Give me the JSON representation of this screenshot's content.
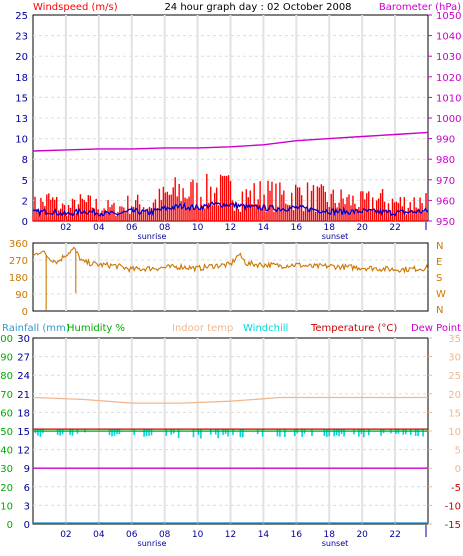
{
  "colors": {
    "windspeed": "#ff0000",
    "windavg": "#0000cc",
    "barometer": "#cc00cc",
    "winddir": "#cc7700",
    "rainfall": "#3399cc",
    "humidity": "#00aa00",
    "indoor": "#f0b890",
    "windchill": "#00d8d8",
    "temperature": "#cc0000",
    "dewpoint": "#cc00cc",
    "grid": "#dcdcdc",
    "axisblue": "#000099"
  },
  "chart_data": [
    {
      "type": "line",
      "title": "24 hour graph day : 02 October 2008",
      "left_label": "Windspeed (m/s)",
      "right_label": "Barometer (hPa)",
      "left_ticks": [
        "0",
        "2",
        "5",
        "8",
        "10",
        "13",
        "15",
        "18",
        "20",
        "23",
        "25"
      ],
      "right_ticks": [
        "950",
        "960",
        "970",
        "980",
        "990",
        "1000",
        "1010",
        "1020",
        "1030",
        "1040",
        "1050"
      ],
      "ylim": [
        0,
        25
      ],
      "ylim_right": [
        950,
        1050
      ],
      "x_ticks": [
        "02",
        "04",
        "06",
        "08",
        "10",
        "12",
        "14",
        "16",
        "18",
        "20",
        "22"
      ],
      "sunrise_label": "sunrise",
      "sunset_label": "sunset",
      "series": [
        {
          "name": "Barometer (hPa)",
          "axis": "right",
          "x": [
            0,
            2,
            4,
            6,
            8,
            10,
            12,
            14,
            16,
            18,
            20,
            22,
            24
          ],
          "values": [
            984,
            984.5,
            985,
            985,
            985.5,
            985.5,
            986,
            987,
            989,
            990,
            991,
            992,
            993
          ]
        },
        {
          "name": "Windspeed (m/s)",
          "axis": "left",
          "type": "bar",
          "x": [
            0,
            1,
            2,
            3,
            4,
            5,
            6,
            7,
            8,
            9,
            10,
            11,
            12,
            13,
            14,
            15,
            16,
            17,
            18,
            19,
            20,
            21,
            22,
            23,
            24
          ],
          "values": [
            2.5,
            3.5,
            2,
            3,
            2.5,
            2,
            3,
            2.5,
            4,
            5,
            4.5,
            5,
            5,
            4,
            4.5,
            4,
            4.5,
            4,
            3.5,
            3.5,
            3,
            3.5,
            3,
            3,
            3.5
          ]
        },
        {
          "name": "Wind average",
          "axis": "left",
          "x": [
            0,
            1,
            2,
            3,
            4,
            5,
            6,
            7,
            8,
            9,
            10,
            11,
            12,
            13,
            14,
            15,
            16,
            17,
            18,
            19,
            20,
            21,
            22,
            23,
            24
          ],
          "values": [
            1,
            1.2,
            0.8,
            1.2,
            1,
            0.8,
            1.2,
            1,
            1.5,
            1.8,
            1.6,
            2,
            2,
            1.7,
            1.6,
            1.5,
            1.6,
            1.4,
            1.2,
            1.1,
            1.2,
            1.1,
            1,
            1.1,
            1.2
          ]
        }
      ]
    },
    {
      "type": "line",
      "left_ticks": [
        "0",
        "90",
        "180",
        "270",
        "360"
      ],
      "right_ticks": [
        "N",
        "W",
        "S",
        "E",
        "N"
      ],
      "ylim": [
        0,
        360
      ],
      "series": [
        {
          "name": "Wind direction",
          "x": [
            0,
            0.5,
            1,
            1.5,
            2,
            2.5,
            3,
            4,
            5,
            6,
            7,
            8,
            9,
            10,
            11,
            12,
            12.5,
            13,
            14,
            15,
            16,
            17,
            18,
            19,
            20,
            21,
            22,
            23,
            24
          ],
          "values": [
            290,
            320,
            280,
            260,
            300,
            330,
            260,
            245,
            240,
            220,
            225,
            230,
            235,
            225,
            240,
            245,
            300,
            250,
            245,
            240,
            245,
            235,
            238,
            232,
            230,
            225,
            220,
            222,
            228
          ]
        }
      ]
    },
    {
      "type": "line",
      "legend": [
        "Rainfall (mm)",
        "Humidity %",
        "Indoor temp",
        "Windchill",
        "Temperature (°C)",
        "Dew Point"
      ],
      "rain_ticks": [
        "0",
        "3",
        "6",
        "9",
        "12",
        "15",
        "18",
        "21",
        "24",
        "27",
        "30"
      ],
      "humidity_ticks": [
        "0",
        "10",
        "20",
        "30",
        "40",
        "50",
        "60",
        "70",
        "80",
        "90",
        "100"
      ],
      "temp_ticks": [
        "-15",
        "-10",
        "-5",
        "0",
        "5",
        "10",
        "15",
        "20",
        "25",
        "30",
        "35"
      ],
      "ylim": [
        -15,
        35
      ],
      "x_ticks": [
        "02",
        "04",
        "06",
        "08",
        "10",
        "12",
        "14",
        "16",
        "18",
        "20",
        "22"
      ],
      "sunrise_label": "sunrise",
      "sunset_label": "sunset",
      "series": [
        {
          "name": "Indoor temp",
          "x": [
            0,
            3,
            6,
            9,
            12,
            15,
            18,
            21,
            24
          ],
          "values": [
            19,
            18.5,
            17.5,
            17.5,
            18,
            19,
            19,
            19,
            19
          ]
        },
        {
          "name": "Temperature (°C)",
          "x": [
            0,
            6,
            12,
            18,
            24
          ],
          "values": [
            10.5,
            10.5,
            10.5,
            10.5,
            10.5
          ]
        },
        {
          "name": "Windchill",
          "x": [
            0,
            2,
            4,
            6,
            8,
            10,
            12,
            14,
            16,
            18,
            20,
            22,
            24
          ],
          "values": [
            9.5,
            9.8,
            9.5,
            9.7,
            9.5,
            9,
            9.3,
            9.5,
            9.4,
            9.5,
            9.3,
            9.5,
            9.4
          ]
        },
        {
          "name": "Dew Point",
          "x": [
            0,
            24
          ],
          "values": [
            0,
            0
          ]
        },
        {
          "name": "Rainfall (mm)",
          "x": [
            0,
            24
          ],
          "values": [
            0,
            0
          ]
        }
      ]
    }
  ]
}
